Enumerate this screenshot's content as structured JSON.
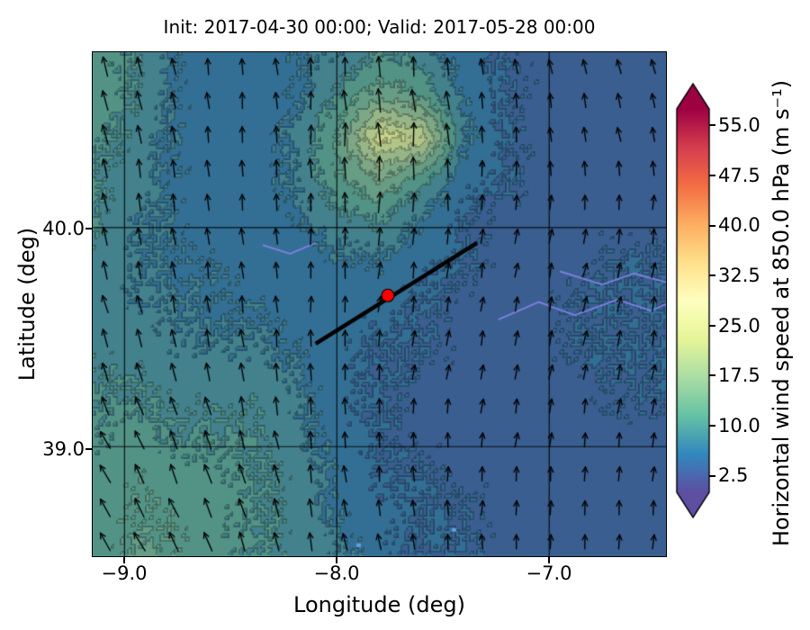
{
  "title": "Init: 2017-04-30 00:00; Valid: 2017-05-28 00:00",
  "axes": {
    "xlabel": "Longitude (deg)",
    "ylabel": "Latitude (deg)",
    "xtick_labels": [
      "−9.0",
      "−8.0",
      "−7.0"
    ],
    "ytick_labels": [
      "40.0",
      "39.0"
    ]
  },
  "colorbar": {
    "label": "Horizontal wind speed at 850.0 hPa (m s⁻¹)",
    "ticks": [
      "55.0",
      "47.5",
      "40.0",
      "32.5",
      "25.0",
      "17.5",
      "10.0",
      "2.5"
    ],
    "tick_values": [
      55.0,
      47.5,
      40.0,
      32.5,
      25.0,
      17.5,
      10.0,
      2.5
    ],
    "vmin": 0,
    "vmax": 57.5,
    "extend": "both",
    "cmap": [
      "#5e4fa2",
      "#3288bd",
      "#66c2a5",
      "#abdda4",
      "#e6f598",
      "#ffffbf",
      "#fee08b",
      "#fdae61",
      "#f46d43",
      "#d53e4f",
      "#9e0142"
    ]
  },
  "chart_data": {
    "type": "heatmap",
    "title": "Init: 2017-04-30 00:00; Valid: 2017-05-28 00:00",
    "xlabel": "Longitude (deg)",
    "ylabel": "Latitude (deg)",
    "colorbar_label": "Horizontal wind speed at 850.0 hPa (m s⁻¹)",
    "xticks": [
      -9.0,
      -8.0,
      -7.0
    ],
    "yticks": [
      40.0,
      39.0
    ],
    "colorbar_ticks": [
      2.5,
      10.0,
      17.5,
      25.0,
      32.5,
      40.0,
      47.5,
      55.0
    ],
    "extent": {
      "lon": [
        -9.15,
        -6.45
      ],
      "lat": [
        38.5,
        40.8
      ]
    },
    "gridlines": {
      "lon": [
        -9.0,
        -8.0,
        -7.0
      ],
      "lat": [
        39.0,
        40.0
      ]
    },
    "grid": {
      "lons": [
        -9.15,
        -8.96,
        -8.76,
        -8.57,
        -8.38,
        -8.19,
        -7.99,
        -7.8,
        -7.61,
        -7.41,
        -7.22,
        -7.03,
        -6.84,
        -6.64,
        -6.45
      ],
      "lats": [
        40.8,
        40.61,
        40.42,
        40.23,
        40.03,
        39.84,
        39.65,
        39.46,
        39.27,
        39.07,
        38.88,
        38.69,
        38.5
      ],
      "speeds_ms": [
        [
          11,
          10,
          7,
          6,
          6,
          7,
          8,
          10,
          9,
          6,
          5,
          4,
          4,
          4,
          4
        ],
        [
          12,
          10,
          7,
          6,
          6,
          7,
          10,
          14,
          12,
          7,
          5,
          4,
          4,
          4,
          4
        ],
        [
          11,
          9,
          7,
          6,
          6,
          8,
          13,
          24,
          22,
          8,
          5,
          4,
          4,
          4,
          4
        ],
        [
          10,
          9,
          7,
          6,
          6,
          8,
          12,
          15,
          11,
          6,
          5,
          4,
          4,
          4,
          4
        ],
        [
          10,
          8,
          7,
          6,
          6,
          7,
          9,
          10,
          7,
          5,
          4,
          4,
          4,
          4,
          4
        ],
        [
          9,
          8,
          7,
          7,
          6,
          6,
          7,
          7,
          6,
          5,
          4,
          4,
          4,
          5,
          5
        ],
        [
          9,
          8,
          8,
          7,
          7,
          6,
          6,
          6,
          5,
          4,
          4,
          4,
          5,
          5,
          5
        ],
        [
          9,
          9,
          8,
          8,
          8,
          7,
          6,
          5,
          5,
          4,
          4,
          4,
          5,
          5,
          5
        ],
        [
          10,
          10,
          9,
          9,
          9,
          8,
          6,
          5,
          4,
          4,
          4,
          4,
          4,
          5,
          5
        ],
        [
          10,
          11,
          10,
          10,
          10,
          8,
          6,
          5,
          4,
          4,
          4,
          4,
          4,
          4,
          4
        ],
        [
          11,
          12,
          11,
          11,
          10,
          9,
          7,
          5,
          5,
          4,
          4,
          4,
          4,
          4,
          4
        ],
        [
          11,
          12,
          12,
          11,
          10,
          9,
          7,
          6,
          5,
          5,
          4,
          4,
          4,
          4,
          4
        ],
        [
          11,
          13,
          12,
          11,
          10,
          9,
          8,
          6,
          5,
          5,
          4,
          4,
          4,
          4,
          4
        ]
      ]
    },
    "quiver": {
      "angles_deg_from_north": [
        [
          -15,
          -10,
          -8,
          -5,
          -5,
          -8,
          -10,
          -12,
          -15
        ],
        [
          -15,
          -10,
          -5,
          -3,
          -3,
          -5,
          -8,
          -10,
          -12
        ],
        [
          -12,
          -8,
          -5,
          0,
          0,
          0,
          5,
          5,
          5
        ],
        [
          -15,
          -10,
          -5,
          0,
          3,
          8,
          10,
          12,
          12
        ],
        [
          -20,
          -15,
          -8,
          -3,
          5,
          10,
          12,
          12,
          10
        ],
        [
          -25,
          -20,
          -12,
          -5,
          0,
          5,
          8,
          8,
          8
        ],
        [
          -30,
          -25,
          -18,
          -10,
          -5,
          0,
          5,
          5,
          5
        ],
        [
          -30,
          -28,
          -20,
          -12,
          -8,
          -3,
          0,
          3,
          5
        ]
      ]
    },
    "cross_section": {
      "line_lonlat": [
        [
          -8.1,
          39.47
        ],
        [
          -7.34,
          39.93
        ]
      ],
      "point_lonlat": [
        -7.76,
        39.69
      ],
      "line_color": "#000000",
      "point_color": "#ff0000"
    },
    "features": {
      "rivers_lonlat": [
        [
          [
            -7.24,
            39.58
          ],
          [
            -7.05,
            39.66
          ],
          [
            -6.88,
            39.6
          ],
          [
            -6.68,
            39.67
          ],
          [
            -6.52,
            39.62
          ],
          [
            -6.45,
            39.65
          ]
        ],
        [
          [
            -6.95,
            39.8
          ],
          [
            -6.75,
            39.74
          ],
          [
            -6.6,
            39.79
          ],
          [
            -6.45,
            39.75
          ]
        ],
        [
          [
            -8.35,
            39.92
          ],
          [
            -8.22,
            39.88
          ],
          [
            -8.1,
            39.93
          ]
        ]
      ],
      "lakes_lonlat": [
        [
          -7.45,
          38.62
        ],
        [
          -7.9,
          38.55
        ]
      ]
    }
  }
}
